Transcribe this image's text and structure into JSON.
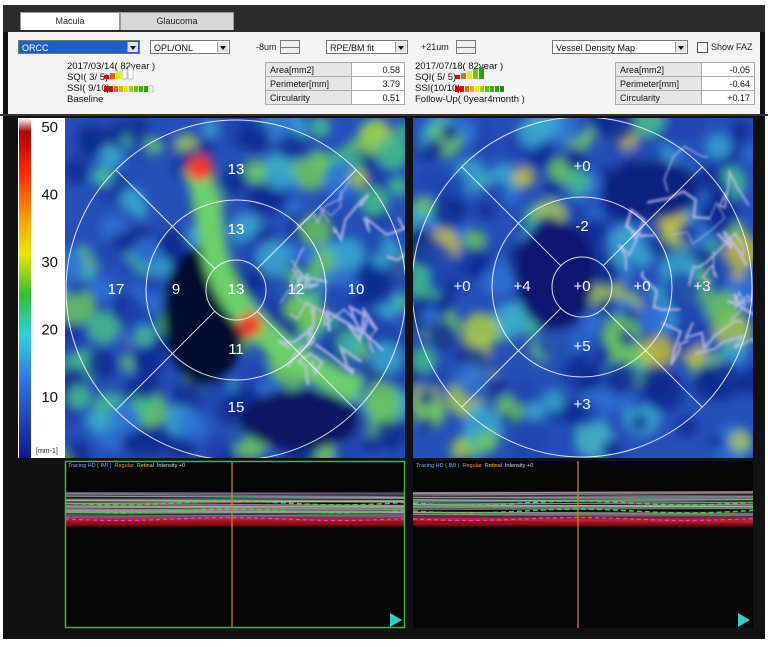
{
  "tabs": [
    "Macula",
    "Glaucoma"
  ],
  "toolbar": {
    "layer_top": "ORCC",
    "layer_bottom": "OPL/ONL",
    "offset_top": "-8um",
    "reference": "RPE/BM fit",
    "offset_bottom": "+21um",
    "map_type": "Vessel Density Map",
    "show_faz": "Show FAZ"
  },
  "color_scale": {
    "ticks": [
      50,
      40,
      30,
      20,
      10
    ],
    "unit": "[mm-1]"
  },
  "scans": [
    {
      "date": "2017/03/14( 82year )",
      "sqi": "SQI( 3/ 5)",
      "ssi": "SSI( 9/10)",
      "visit": "Baseline",
      "metrics": [
        [
          "Area[mm2]",
          "0.58"
        ],
        [
          "Perimeter[mm]",
          "3.79"
        ],
        [
          "Circularity",
          "0.51"
        ]
      ],
      "sectors": {
        "center": 13,
        "inner_top": 13,
        "inner_left": 9,
        "inner_right": 12,
        "inner_bottom": 11,
        "outer_top": 13,
        "outer_left": 17,
        "outer_right": 10,
        "outer_bottom": 15
      },
      "bscan_label": [
        "Tracing HD ( IMI )",
        "Regular",
        "Retinal",
        "Intensity +0"
      ]
    },
    {
      "date": "2017/07/18( 82year )",
      "sqi": "SQI( 5/ 5)",
      "ssi": "SSI(10/10)",
      "visit": "Follow-Up( 0year4month )",
      "metrics": [
        [
          "Area[mm2]",
          "-0.05"
        ],
        [
          "Perimeter[mm]",
          "-0.64"
        ],
        [
          "Circularity",
          "+0.17"
        ]
      ],
      "sectors": {
        "center": "+0",
        "inner_top": "-2",
        "inner_left": "+4",
        "inner_right": "+0",
        "inner_bottom": "+5",
        "outer_top": "+0",
        "outer_left": "+0",
        "outer_right": "+3",
        "outer_bottom": "+3"
      },
      "bscan_label": [
        "Tracing HD ( IMI )",
        "Regular",
        "Retinal",
        "Intensity +0"
      ]
    }
  ]
}
